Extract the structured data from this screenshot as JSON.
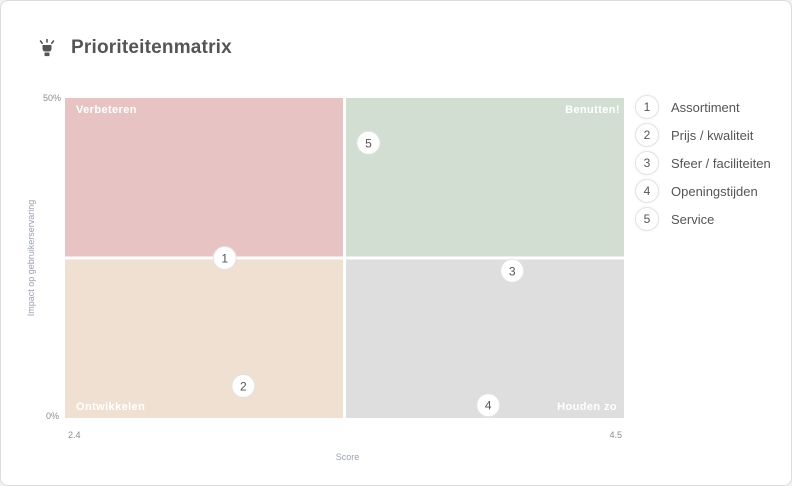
{
  "header": {
    "title": "Prioriteitenmatrix",
    "icon": "lightbulb-icon"
  },
  "colors": {
    "verbeteren": "#e7c3c4",
    "benutten": "#d3ded3",
    "ontwikkelen": "#f0e0d2",
    "houden_zo": "#dedede"
  },
  "chart_data": {
    "type": "scatter",
    "title": "Prioriteitenmatrix",
    "xlabel": "Score",
    "ylabel": "Impact op gebruikerservaring",
    "xlim": [
      2.4,
      4.5
    ],
    "ylim": [
      0,
      50
    ],
    "x_tick_labels": [
      "2.4",
      "4.5"
    ],
    "y_tick_labels": [
      "0%",
      "50%"
    ],
    "x_split": 3.45,
    "y_split": 25,
    "grid": false,
    "legend_position": "right",
    "quadrants": {
      "top_left": "Verbeteren",
      "top_right": "Benutten!",
      "bottom_left": "Ontwikkelen",
      "bottom_right": "Houden zo"
    },
    "points": [
      {
        "id": "1",
        "label": "Assortiment",
        "x": 3.0,
        "y": 25
      },
      {
        "id": "2",
        "label": "Prijs / kwaliteit",
        "x": 3.07,
        "y": 5
      },
      {
        "id": "3",
        "label": "Sfeer / faciliteiten",
        "x": 4.08,
        "y": 23
      },
      {
        "id": "4",
        "label": "Openingstijden",
        "x": 3.99,
        "y": 2
      },
      {
        "id": "5",
        "label": "Service",
        "x": 3.54,
        "y": 43
      }
    ]
  }
}
